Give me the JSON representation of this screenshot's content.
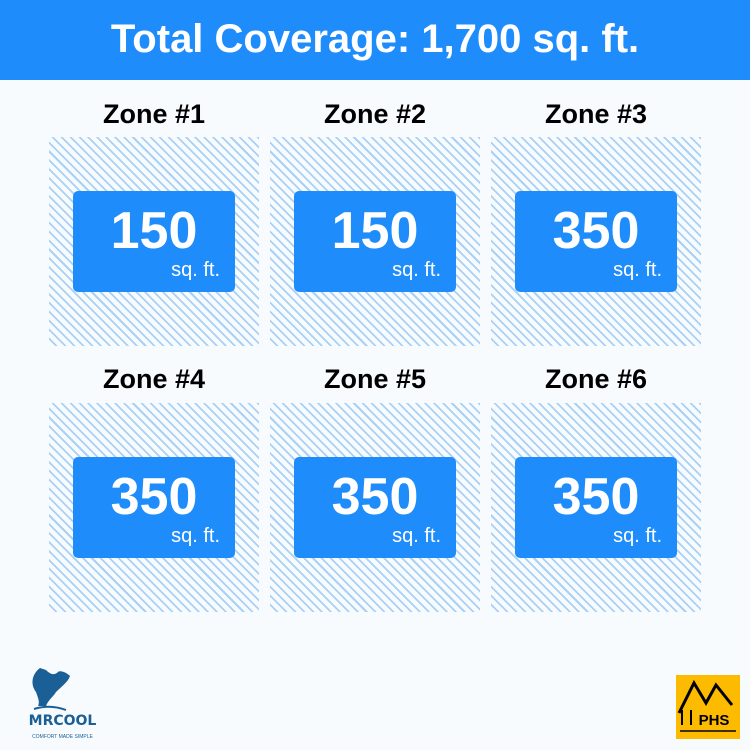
{
  "header": {
    "title": "Total Coverage: 1,700 sq. ft."
  },
  "zones": [
    {
      "label": "Zone #1",
      "area": "150",
      "unit": "sq. ft."
    },
    {
      "label": "Zone #2",
      "area": "150",
      "unit": "sq. ft."
    },
    {
      "label": "Zone #3",
      "area": "350",
      "unit": "sq. ft."
    },
    {
      "label": "Zone #4",
      "area": "350",
      "unit": "sq. ft."
    },
    {
      "label": "Zone #5",
      "area": "350",
      "unit": "sq. ft."
    },
    {
      "label": "Zone #6",
      "area": "350",
      "unit": "sq. ft."
    }
  ],
  "logos": {
    "mrcool": "MRCOOL",
    "mrcool_tagline": "COMFORT MADE SIMPLE",
    "phs": "PHS"
  },
  "colors": {
    "accent": "#1e8cfb",
    "hatch": "#a9d0f5",
    "phs": "#fdbb00"
  }
}
